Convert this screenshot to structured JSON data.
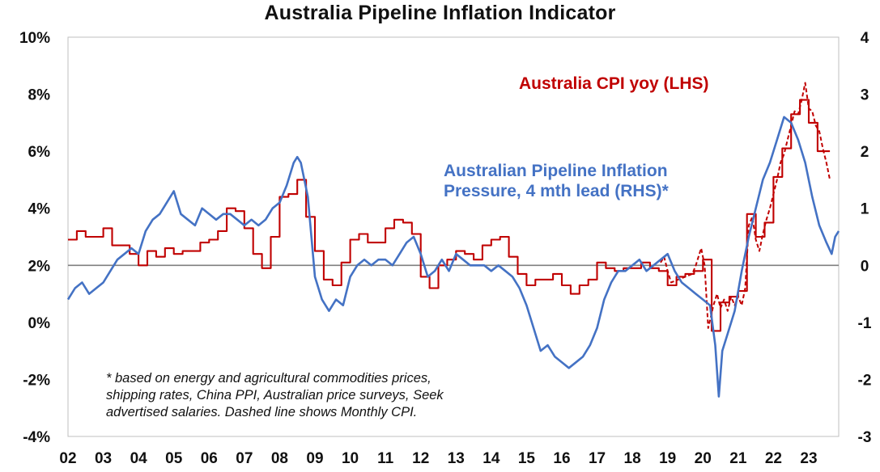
{
  "chart_data": {
    "type": "line",
    "title": "Australia Pipeline Inflation Indicator",
    "x_tick_labels": [
      "02",
      "03",
      "04",
      "05",
      "06",
      "07",
      "08",
      "09",
      "10",
      "11",
      "12",
      "13",
      "14",
      "15",
      "16",
      "17",
      "18",
      "19",
      "20",
      "21",
      "22",
      "23"
    ],
    "x_range": [
      2002.0,
      2023.85
    ],
    "y_left": {
      "range": [
        -4,
        10
      ],
      "ticks": [
        -4,
        -2,
        0,
        2,
        4,
        6,
        8,
        10
      ],
      "tick_labels": [
        "-4%",
        "-2%",
        "0%",
        "2%",
        "4%",
        "6%",
        "8%",
        "10%"
      ]
    },
    "y_right": {
      "range": [
        -3,
        4
      ],
      "ticks": [
        -3,
        -2,
        -1,
        0,
        1,
        2,
        3,
        4
      ],
      "tick_labels": [
        "-3",
        "-2",
        "-1",
        "0",
        "1",
        "2",
        "3",
        "4"
      ]
    },
    "zero_line_axis": "right",
    "colors": {
      "cpi": "#c00000",
      "pipeline": "#4472c4",
      "zero_line": "#7f7f7f",
      "frame": "#bfbfbf"
    },
    "series": [
      {
        "name": "Australia CPI yoy (LHS)",
        "axis": "left",
        "style": "step",
        "points": [
          [
            2002.0,
            2.9
          ],
          [
            2002.25,
            3.2
          ],
          [
            2002.5,
            3.0
          ],
          [
            2002.75,
            3.0
          ],
          [
            2003.0,
            3.3
          ],
          [
            2003.25,
            2.7
          ],
          [
            2003.5,
            2.7
          ],
          [
            2003.75,
            2.4
          ],
          [
            2004.0,
            2.0
          ],
          [
            2004.25,
            2.5
          ],
          [
            2004.5,
            2.3
          ],
          [
            2004.75,
            2.6
          ],
          [
            2005.0,
            2.4
          ],
          [
            2005.25,
            2.5
          ],
          [
            2005.5,
            2.5
          ],
          [
            2005.75,
            2.8
          ],
          [
            2006.0,
            2.9
          ],
          [
            2006.25,
            3.2
          ],
          [
            2006.5,
            4.0
          ],
          [
            2006.75,
            3.9
          ],
          [
            2007.0,
            3.3
          ],
          [
            2007.25,
            2.4
          ],
          [
            2007.5,
            1.9
          ],
          [
            2007.75,
            3.0
          ],
          [
            2008.0,
            4.4
          ],
          [
            2008.25,
            4.5
          ],
          [
            2008.5,
            5.0
          ],
          [
            2008.75,
            3.7
          ],
          [
            2009.0,
            2.5
          ],
          [
            2009.25,
            1.5
          ],
          [
            2009.5,
            1.3
          ],
          [
            2009.75,
            2.1
          ],
          [
            2010.0,
            2.9
          ],
          [
            2010.25,
            3.1
          ],
          [
            2010.5,
            2.8
          ],
          [
            2010.75,
            2.8
          ],
          [
            2011.0,
            3.3
          ],
          [
            2011.25,
            3.6
          ],
          [
            2011.5,
            3.5
          ],
          [
            2011.75,
            3.1
          ],
          [
            2012.0,
            1.6
          ],
          [
            2012.25,
            1.2
          ],
          [
            2012.5,
            2.0
          ],
          [
            2012.75,
            2.2
          ],
          [
            2013.0,
            2.5
          ],
          [
            2013.25,
            2.4
          ],
          [
            2013.5,
            2.2
          ],
          [
            2013.75,
            2.7
          ],
          [
            2014.0,
            2.9
          ],
          [
            2014.25,
            3.0
          ],
          [
            2014.5,
            2.3
          ],
          [
            2014.75,
            1.7
          ],
          [
            2015.0,
            1.3
          ],
          [
            2015.25,
            1.5
          ],
          [
            2015.5,
            1.5
          ],
          [
            2015.75,
            1.7
          ],
          [
            2016.0,
            1.3
          ],
          [
            2016.25,
            1.0
          ],
          [
            2016.5,
            1.3
          ],
          [
            2016.75,
            1.5
          ],
          [
            2017.0,
            2.1
          ],
          [
            2017.25,
            1.9
          ],
          [
            2017.5,
            1.8
          ],
          [
            2017.75,
            1.9
          ],
          [
            2018.0,
            1.9
          ],
          [
            2018.25,
            2.1
          ],
          [
            2018.5,
            1.9
          ],
          [
            2018.75,
            1.8
          ],
          [
            2019.0,
            1.3
          ],
          [
            2019.25,
            1.6
          ],
          [
            2019.5,
            1.7
          ],
          [
            2019.75,
            1.8
          ],
          [
            2020.0,
            2.2
          ],
          [
            2020.25,
            -0.3
          ],
          [
            2020.5,
            0.7
          ],
          [
            2020.75,
            0.9
          ],
          [
            2021.0,
            1.1
          ],
          [
            2021.25,
            3.8
          ],
          [
            2021.5,
            3.0
          ],
          [
            2021.75,
            3.5
          ],
          [
            2022.0,
            5.1
          ],
          [
            2022.25,
            6.1
          ],
          [
            2022.5,
            7.3
          ],
          [
            2022.75,
            7.8
          ],
          [
            2023.0,
            7.0
          ],
          [
            2023.25,
            6.0
          ],
          [
            2023.6,
            6.0
          ]
        ]
      },
      {
        "name": "Monthly CPI",
        "axis": "left",
        "style": "dashed",
        "points": [
          [
            2018.8,
            2.1
          ],
          [
            2018.9,
            2.3
          ],
          [
            2019.0,
            1.8
          ],
          [
            2019.1,
            1.4
          ],
          [
            2019.3,
            1.5
          ],
          [
            2019.5,
            1.6
          ],
          [
            2019.7,
            1.7
          ],
          [
            2019.8,
            2.0
          ],
          [
            2019.95,
            2.6
          ],
          [
            2020.05,
            2.0
          ],
          [
            2020.15,
            -0.2
          ],
          [
            2020.3,
            0.6
          ],
          [
            2020.4,
            1.0
          ],
          [
            2020.5,
            0.5
          ],
          [
            2020.6,
            0.8
          ],
          [
            2020.7,
            0.4
          ],
          [
            2020.8,
            0.9
          ],
          [
            2020.9,
            0.6
          ],
          [
            2021.0,
            0.9
          ],
          [
            2021.1,
            0.6
          ],
          [
            2021.2,
            1.2
          ],
          [
            2021.3,
            3.4
          ],
          [
            2021.4,
            3.7
          ],
          [
            2021.5,
            2.9
          ],
          [
            2021.6,
            2.5
          ],
          [
            2021.7,
            3.1
          ],
          [
            2021.8,
            3.6
          ],
          [
            2021.9,
            4.0
          ],
          [
            2022.0,
            4.5
          ],
          [
            2022.1,
            5.0
          ],
          [
            2022.2,
            5.6
          ],
          [
            2022.3,
            5.9
          ],
          [
            2022.4,
            6.4
          ],
          [
            2022.5,
            6.9
          ],
          [
            2022.6,
            7.4
          ],
          [
            2022.7,
            7.3
          ],
          [
            2022.8,
            7.8
          ],
          [
            2022.9,
            8.4
          ],
          [
            2023.0,
            7.5
          ],
          [
            2023.1,
            7.4
          ],
          [
            2023.2,
            6.9
          ],
          [
            2023.3,
            6.7
          ],
          [
            2023.4,
            6.1
          ],
          [
            2023.5,
            5.6
          ],
          [
            2023.6,
            5.0
          ]
        ]
      },
      {
        "name": "Australian Pipeline Inflation Pressure, 4 mth lead (RHS)*",
        "axis": "right",
        "style": "solid",
        "points": [
          [
            2002.0,
            -0.6
          ],
          [
            2002.2,
            -0.4
          ],
          [
            2002.4,
            -0.3
          ],
          [
            2002.6,
            -0.5
          ],
          [
            2002.8,
            -0.4
          ],
          [
            2003.0,
            -0.3
          ],
          [
            2003.2,
            -0.1
          ],
          [
            2003.4,
            0.1
          ],
          [
            2003.6,
            0.2
          ],
          [
            2003.8,
            0.3
          ],
          [
            2004.0,
            0.2
          ],
          [
            2004.2,
            0.6
          ],
          [
            2004.4,
            0.8
          ],
          [
            2004.6,
            0.9
          ],
          [
            2004.8,
            1.1
          ],
          [
            2005.0,
            1.3
          ],
          [
            2005.2,
            0.9
          ],
          [
            2005.4,
            0.8
          ],
          [
            2005.6,
            0.7
          ],
          [
            2005.8,
            1.0
          ],
          [
            2006.0,
            0.9
          ],
          [
            2006.2,
            0.8
          ],
          [
            2006.4,
            0.9
          ],
          [
            2006.6,
            0.9
          ],
          [
            2006.8,
            0.8
          ],
          [
            2007.0,
            0.7
          ],
          [
            2007.2,
            0.8
          ],
          [
            2007.4,
            0.7
          ],
          [
            2007.6,
            0.8
          ],
          [
            2007.8,
            1.0
          ],
          [
            2008.0,
            1.1
          ],
          [
            2008.2,
            1.4
          ],
          [
            2008.4,
            1.8
          ],
          [
            2008.5,
            1.9
          ],
          [
            2008.6,
            1.8
          ],
          [
            2008.8,
            1.2
          ],
          [
            2009.0,
            -0.2
          ],
          [
            2009.2,
            -0.6
          ],
          [
            2009.4,
            -0.8
          ],
          [
            2009.6,
            -0.6
          ],
          [
            2009.8,
            -0.7
          ],
          [
            2010.0,
            -0.2
          ],
          [
            2010.2,
            0.0
          ],
          [
            2010.4,
            0.1
          ],
          [
            2010.6,
            0.0
          ],
          [
            2010.8,
            0.1
          ],
          [
            2011.0,
            0.1
          ],
          [
            2011.2,
            0.0
          ],
          [
            2011.4,
            0.2
          ],
          [
            2011.6,
            0.4
          ],
          [
            2011.8,
            0.5
          ],
          [
            2012.0,
            0.2
          ],
          [
            2012.2,
            -0.2
          ],
          [
            2012.4,
            -0.1
          ],
          [
            2012.6,
            0.1
          ],
          [
            2012.8,
            -0.1
          ],
          [
            2013.0,
            0.2
          ],
          [
            2013.2,
            0.1
          ],
          [
            2013.4,
            0.0
          ],
          [
            2013.6,
            0.0
          ],
          [
            2013.8,
            0.0
          ],
          [
            2014.0,
            -0.1
          ],
          [
            2014.2,
            0.0
          ],
          [
            2014.4,
            -0.1
          ],
          [
            2014.6,
            -0.2
          ],
          [
            2014.8,
            -0.4
          ],
          [
            2015.0,
            -0.7
          ],
          [
            2015.2,
            -1.1
          ],
          [
            2015.4,
            -1.5
          ],
          [
            2015.6,
            -1.4
          ],
          [
            2015.8,
            -1.6
          ],
          [
            2016.0,
            -1.7
          ],
          [
            2016.2,
            -1.8
          ],
          [
            2016.4,
            -1.7
          ],
          [
            2016.6,
            -1.6
          ],
          [
            2016.8,
            -1.4
          ],
          [
            2017.0,
            -1.1
          ],
          [
            2017.2,
            -0.6
          ],
          [
            2017.4,
            -0.3
          ],
          [
            2017.6,
            -0.1
          ],
          [
            2017.8,
            -0.1
          ],
          [
            2018.0,
            0.0
          ],
          [
            2018.2,
            0.1
          ],
          [
            2018.4,
            -0.1
          ],
          [
            2018.6,
            0.0
          ],
          [
            2018.8,
            0.1
          ],
          [
            2019.0,
            0.2
          ],
          [
            2019.2,
            -0.1
          ],
          [
            2019.4,
            -0.3
          ],
          [
            2019.6,
            -0.4
          ],
          [
            2019.8,
            -0.5
          ],
          [
            2020.0,
            -0.6
          ],
          [
            2020.2,
            -0.7
          ],
          [
            2020.35,
            -1.4
          ],
          [
            2020.45,
            -2.3
          ],
          [
            2020.55,
            -1.5
          ],
          [
            2020.7,
            -1.2
          ],
          [
            2020.9,
            -0.8
          ],
          [
            2021.1,
            -0.1
          ],
          [
            2021.3,
            0.5
          ],
          [
            2021.5,
            1.0
          ],
          [
            2021.7,
            1.5
          ],
          [
            2021.9,
            1.8
          ],
          [
            2022.1,
            2.2
          ],
          [
            2022.3,
            2.6
          ],
          [
            2022.5,
            2.5
          ],
          [
            2022.7,
            2.2
          ],
          [
            2022.9,
            1.8
          ],
          [
            2023.1,
            1.2
          ],
          [
            2023.3,
            0.7
          ],
          [
            2023.5,
            0.4
          ],
          [
            2023.65,
            0.2
          ],
          [
            2023.75,
            0.5
          ],
          [
            2023.85,
            0.6
          ]
        ]
      }
    ],
    "annotations": {
      "cpi_label": "Australia CPI yoy (LHS)",
      "pipeline_label_line1": "Australian Pipeline Inflation",
      "pipeline_label_line2": "Pressure, 4 mth lead (RHS)*",
      "footnote_line1": "* based on energy and agricultural commodities prices,",
      "footnote_line2": "shipping rates, China PPI, Australian price surveys, Seek",
      "footnote_line3": "advertised salaries. Dashed line shows Monthly CPI."
    }
  }
}
